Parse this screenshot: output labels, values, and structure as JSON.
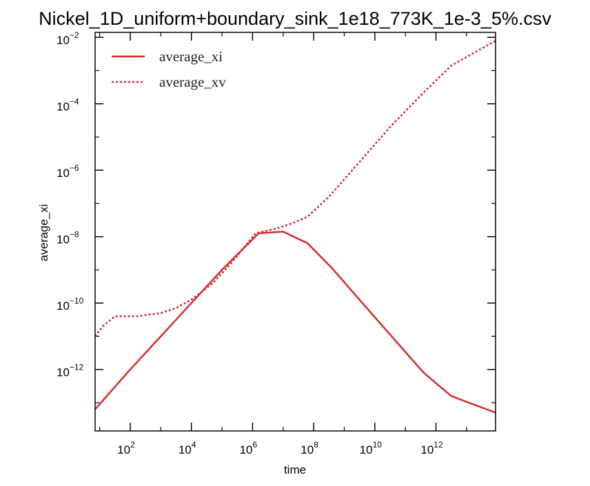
{
  "chart_data": {
    "type": "line",
    "title": "Nickel_1D_uniform+boundary_sink_1e18_773K_1e-3_5%.csv",
    "xlabel": "time",
    "ylabel": "average_xi",
    "xscale": "log",
    "yscale": "log",
    "xlim_exp": [
      0.85,
      13.95
    ],
    "ylim_exp": [
      -13.85,
      -1.85
    ],
    "x_ticks": [
      {
        "base": "10",
        "exp": "2",
        "value_exp": 2
      },
      {
        "base": "10",
        "exp": "4",
        "value_exp": 4
      },
      {
        "base": "10",
        "exp": "6",
        "value_exp": 6
      },
      {
        "base": "10",
        "exp": "8",
        "value_exp": 8
      },
      {
        "base": "10",
        "exp": "10",
        "value_exp": 10
      },
      {
        "base": "10",
        "exp": "12",
        "value_exp": 12
      }
    ],
    "y_ticks": [
      {
        "base": "10",
        "exp": "−12",
        "value_exp": -12
      },
      {
        "base": "10",
        "exp": "−10",
        "value_exp": -10
      },
      {
        "base": "10",
        "exp": "−8",
        "value_exp": -8
      },
      {
        "base": "10",
        "exp": "−6",
        "value_exp": -6
      },
      {
        "base": "10",
        "exp": "−4",
        "value_exp": -4
      },
      {
        "base": "10",
        "exp": "−2",
        "value_exp": -2
      }
    ],
    "legend_position": "top-left",
    "series": [
      {
        "name": "average_xi",
        "style": "solid",
        "color": "#d62728",
        "points_log10": [
          [
            0.85,
            -13.2
          ],
          [
            2.0,
            -12.0
          ],
          [
            3.0,
            -11.0
          ],
          [
            4.0,
            -10.0
          ],
          [
            5.0,
            -9.0
          ],
          [
            6.2,
            -7.9
          ],
          [
            7.0,
            -7.85
          ],
          [
            7.8,
            -8.2
          ],
          [
            8.6,
            -8.95
          ],
          [
            9.5,
            -9.9
          ],
          [
            10.5,
            -10.95
          ],
          [
            11.6,
            -12.1
          ],
          [
            12.5,
            -12.8
          ],
          [
            13.95,
            -13.3
          ]
        ]
      },
      {
        "name": "average_xv",
        "style": "dotted",
        "color": "#d62728",
        "points_log10": [
          [
            0.85,
            -11.0
          ],
          [
            1.1,
            -10.7
          ],
          [
            1.5,
            -10.4
          ],
          [
            2.2,
            -10.4
          ],
          [
            3.0,
            -10.3
          ],
          [
            3.5,
            -10.15
          ],
          [
            4.0,
            -9.9
          ],
          [
            4.7,
            -9.4
          ],
          [
            5.3,
            -8.8
          ],
          [
            6.1,
            -7.9
          ],
          [
            6.8,
            -7.75
          ],
          [
            7.3,
            -7.6
          ],
          [
            7.8,
            -7.4
          ],
          [
            8.5,
            -6.8
          ],
          [
            9.5,
            -5.75
          ],
          [
            10.5,
            -4.7
          ],
          [
            11.5,
            -3.75
          ],
          [
            12.5,
            -2.85
          ],
          [
            13.95,
            -2.1
          ]
        ]
      }
    ]
  }
}
